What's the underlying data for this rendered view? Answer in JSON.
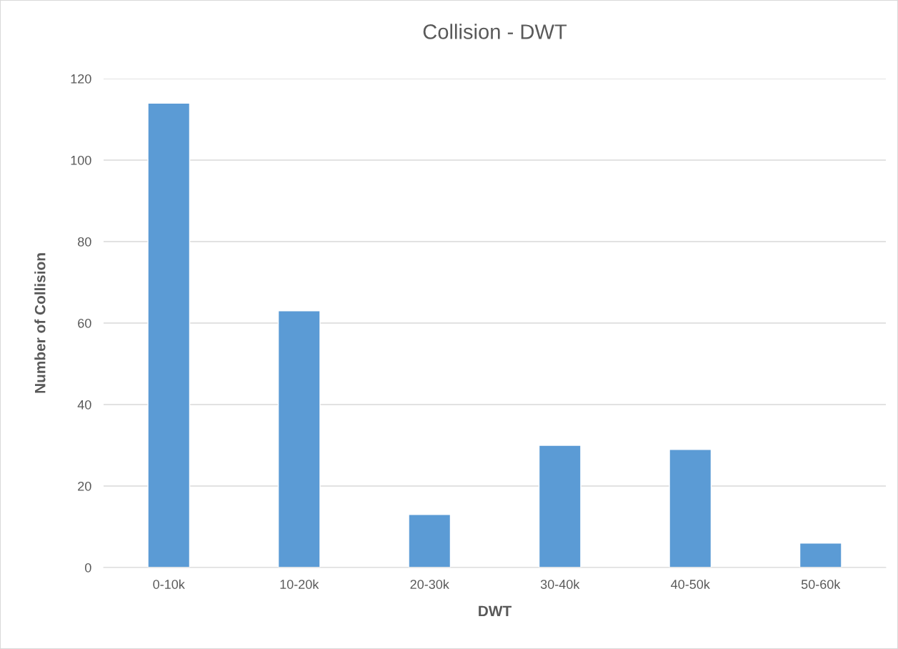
{
  "chart_data": {
    "type": "bar",
    "title": "Collision - DWT",
    "xlabel": "DWT",
    "ylabel": "Number of Collision",
    "categories": [
      "0-10k",
      "10-20k",
      "20-30k",
      "30-40k",
      "40-50k",
      "50-60k"
    ],
    "values": [
      114,
      63,
      13,
      30,
      29,
      6
    ],
    "color": "#5b9bd5",
    "ylim": [
      0,
      120
    ],
    "yticks": [
      0,
      20,
      40,
      60,
      80,
      100,
      120
    ],
    "grid": "y",
    "legend": false
  }
}
